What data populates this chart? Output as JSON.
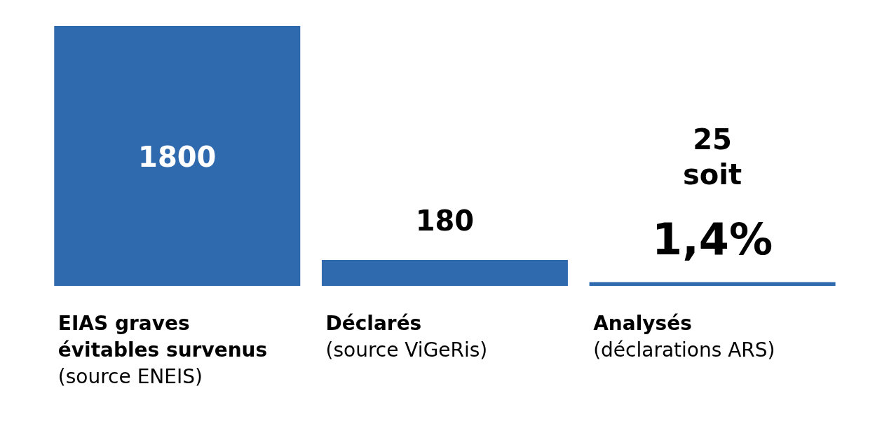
{
  "chart_data": {
    "type": "bar",
    "categories": [
      "EIAS graves évitables survenus (source ENEIS)",
      "Déclarés (source ViGeRis)",
      "Analysés (déclarations ARS)"
    ],
    "values": [
      1800,
      180,
      25
    ],
    "color": "#2f69ae",
    "value_labels": [
      "1800",
      "180",
      "25 soit 1,4%"
    ]
  }
}
